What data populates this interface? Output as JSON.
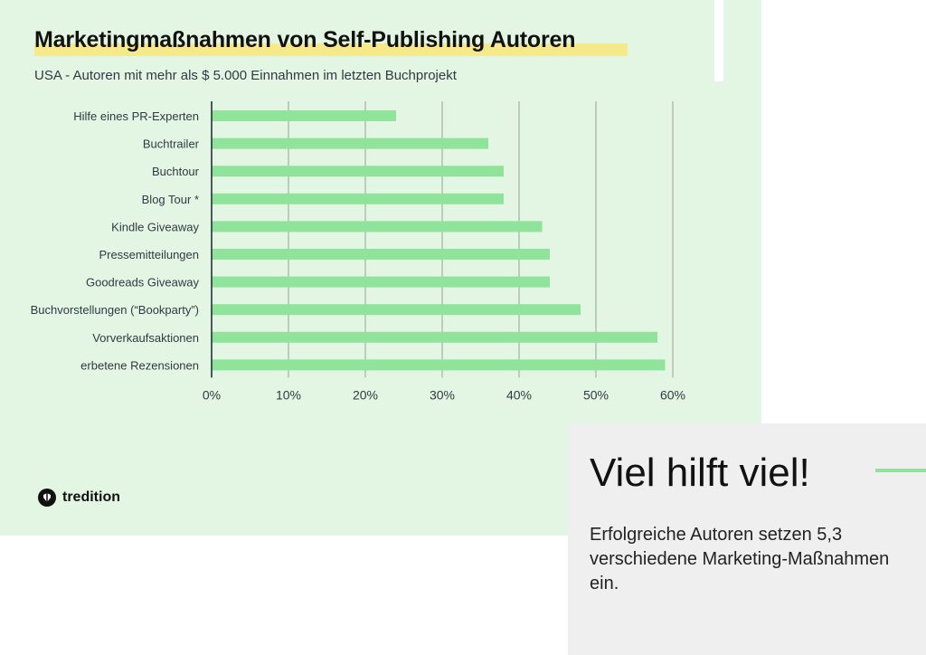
{
  "title": "Marketingmaßnahmen von Self-Publishing Autoren",
  "subtitle": "USA - Autoren mit mehr als $ 5.000 Einnahmen im letzten Buchprojekt",
  "brand": {
    "name": "tredition",
    "icon": "tredition-logo-icon"
  },
  "colors": {
    "bar": "#8fe39a",
    "card": "#e3f6e3",
    "highlight": "#f6e98a"
  },
  "panel": {
    "heading": "Viel hilft viel!",
    "text": "Erfolgreiche Autoren setzen 5,3 verschiedene Marketing-Maßnahmen ein."
  },
  "chart_data": {
    "type": "bar",
    "orientation": "horizontal",
    "categories": [
      "Hilfe eines PR-Experten",
      "Buchtrailer",
      "Buchtour",
      "Blog Tour *",
      "Kindle Giveaway",
      "Pressemitteilungen",
      "Goodreads Giveaway",
      "Buchvorstellungen (“Bookparty”)",
      "Vorverkaufsaktionen",
      "erbetene Rezensionen"
    ],
    "values": [
      24,
      36,
      38,
      38,
      43,
      44,
      44,
      48,
      58,
      59
    ],
    "xticks": [
      "0%",
      "10%",
      "20%",
      "30%",
      "40%",
      "50%",
      "60%"
    ],
    "xlim": [
      0,
      60
    ],
    "unit": "%",
    "grid": true
  }
}
